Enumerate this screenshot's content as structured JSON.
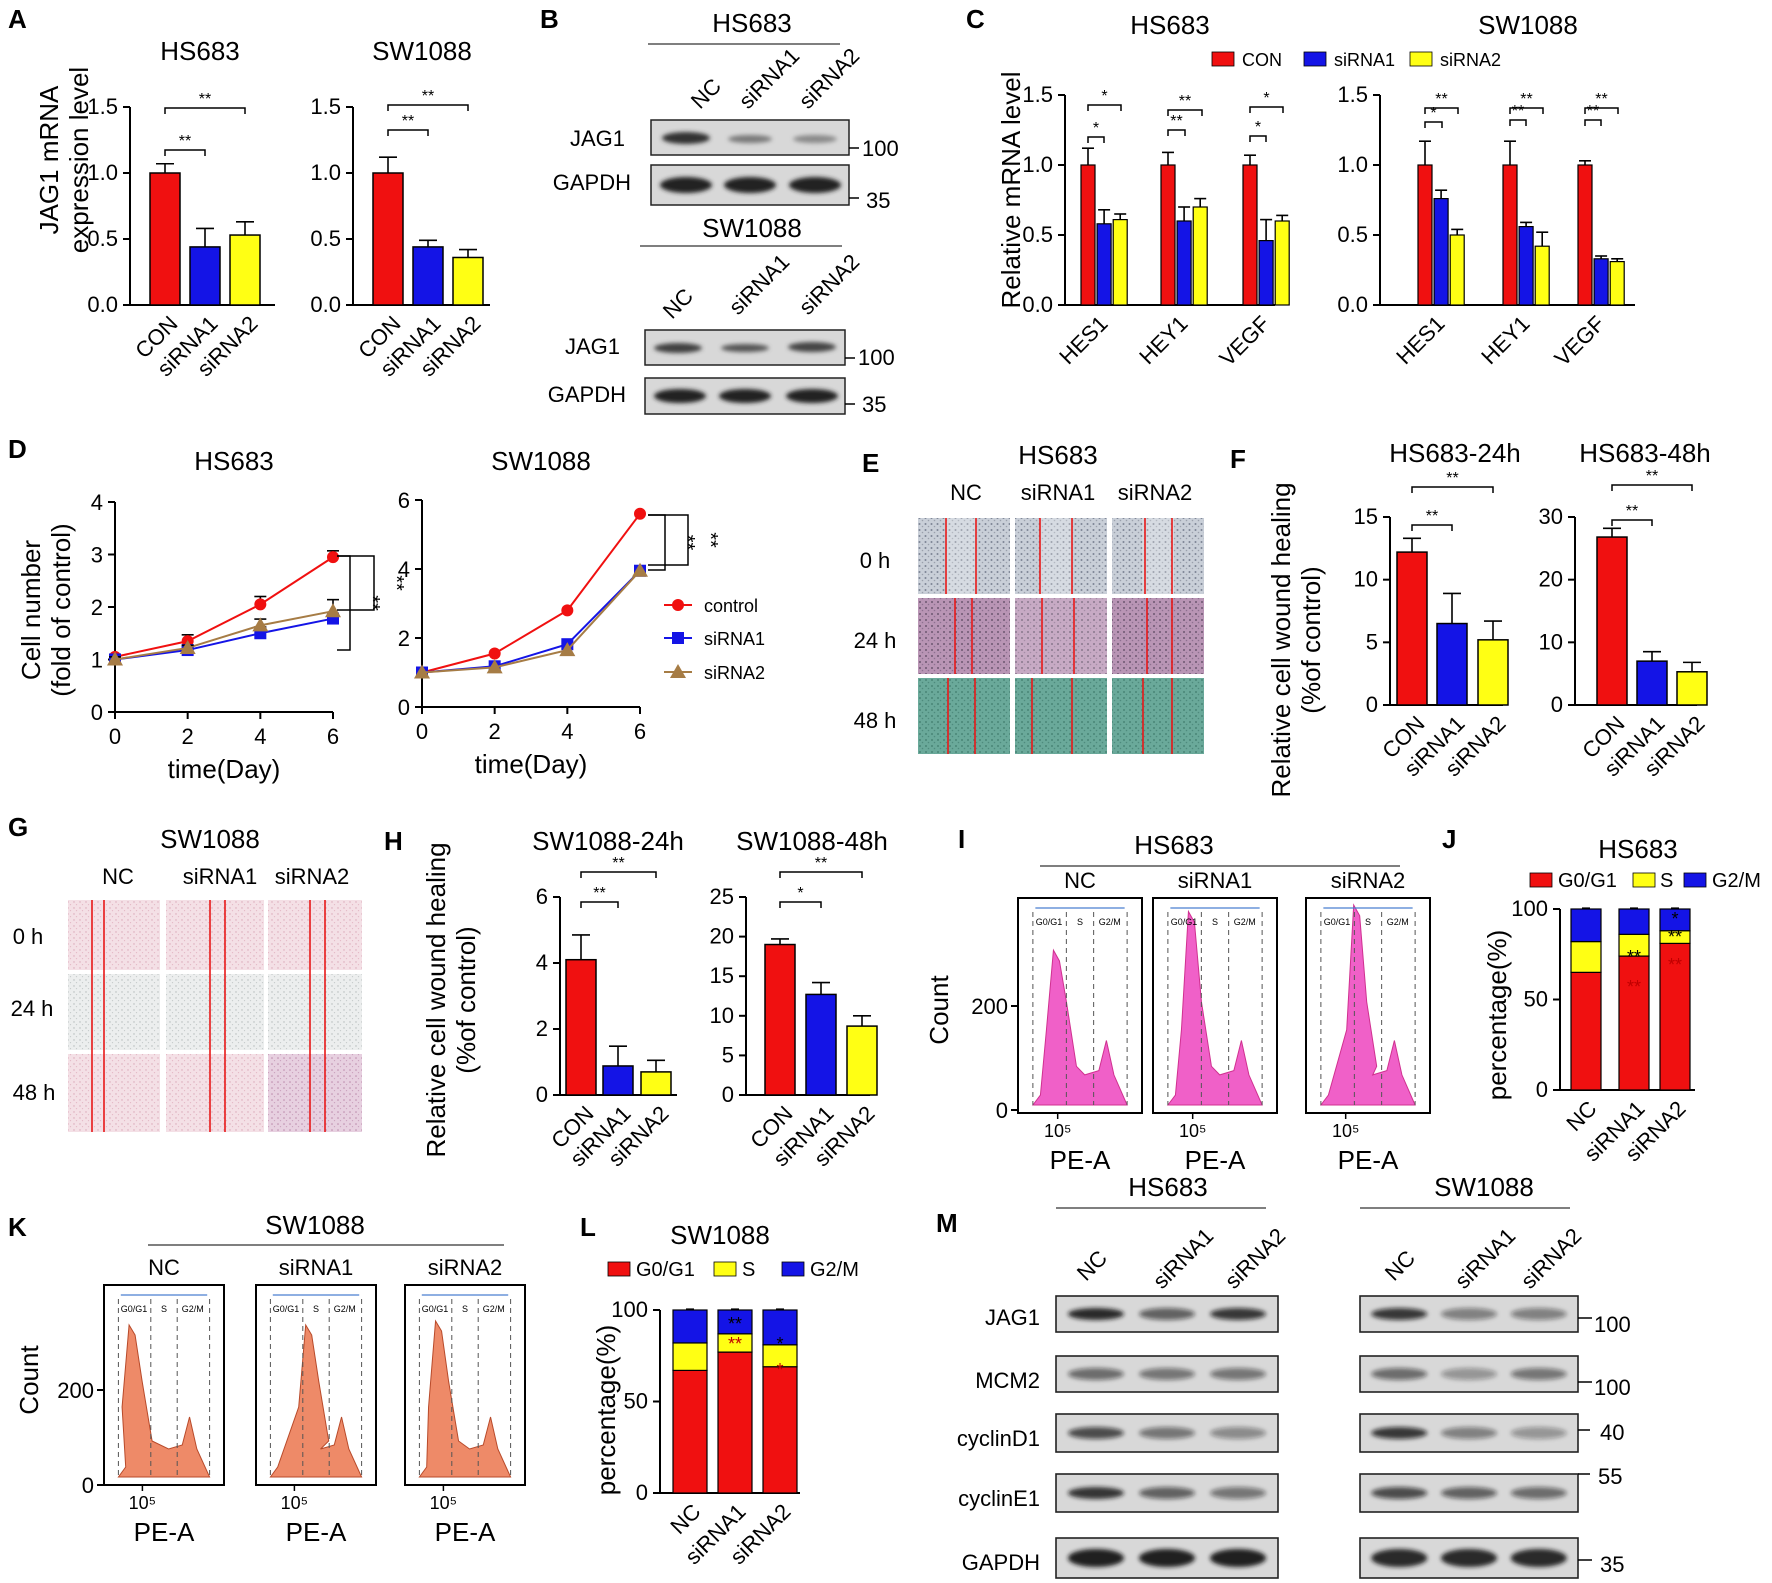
{
  "panels": {
    "A": "A",
    "B": "B",
    "C": "C",
    "D": "D",
    "E": "E",
    "F": "F",
    "G": "G",
    "H": "H",
    "I": "I",
    "J": "J",
    "K": "K",
    "L": "L",
    "M": "M"
  },
  "labels": {
    "con": "CON",
    "sirna1": "siRNA1",
    "sirna2": "siRNA2",
    "nc": "NC",
    "hs683": "HS683",
    "sw1088": "SW1088",
    "jag1": "JAG1",
    "gapdh": "GAPDH",
    "mcm2": "MCM2",
    "cyclind1": "cyclinD1",
    "cyclinE1": "cyclinE1",
    "mw100": "100",
    "mw35": "35",
    "mw40": "40",
    "mw55": "55",
    "star2": "**",
    "star1": "*",
    "count": "Count",
    "pea": "PE-A",
    "tick105": "10⁵",
    "g0g1_short": "G0/G1",
    "s_short": "S",
    "g2m_short": "G2/M",
    "h0": "0  h",
    "h24": "24  h",
    "h48": "48  h",
    "control": "control",
    "ylab_a": [
      "JAG1 mRNA",
      "expression level"
    ],
    "ylab_c": "Relative mRNA level",
    "ylab_d": [
      "Cell number",
      "(fold of control)"
    ],
    "xlab_d": "time(Day)",
    "ylab_wound": [
      "Relative cell wound healing",
      "(%of control)"
    ],
    "ylab_pct": "percentage(%)"
  },
  "colors": {
    "red": "#f01010",
    "blue": "#1414e6",
    "yellow": "#ffff14",
    "brown": "#a67c45",
    "pink": "#f060c8",
    "salmon": "#ee8a68"
  },
  "chart_data": [
    {
      "id": "A1",
      "type": "bar",
      "title": "HS683",
      "categories": [
        "CON",
        "siRNA1",
        "siRNA2"
      ],
      "values": [
        1.0,
        0.44,
        0.53
      ],
      "errors": [
        0.07,
        0.14,
        0.1
      ],
      "ylim": [
        0,
        1.5
      ],
      "yticks": [
        "0.0",
        "0.5",
        "1.0",
        "1.5"
      ],
      "ylabel": "JAG1 mRNA expression level"
    },
    {
      "id": "A2",
      "type": "bar",
      "title": "SW1088",
      "categories": [
        "CON",
        "siRNA1",
        "siRNA2"
      ],
      "values": [
        1.0,
        0.44,
        0.36
      ],
      "errors": [
        0.12,
        0.05,
        0.06
      ],
      "ylim": [
        0,
        1.5
      ],
      "yticks": [
        "0.0",
        "0.5",
        "1.0",
        "1.5"
      ]
    },
    {
      "id": "C1",
      "type": "bar",
      "title": "HS683",
      "categories": [
        "HES1",
        "HEY1",
        "VEGF"
      ],
      "series": [
        {
          "name": "CON",
          "values": [
            1.0,
            1.0,
            1.0
          ],
          "errors": [
            0.12,
            0.09,
            0.07
          ]
        },
        {
          "name": "siRNA1",
          "values": [
            0.58,
            0.6,
            0.46
          ],
          "errors": [
            0.1,
            0.1,
            0.15
          ]
        },
        {
          "name": "siRNA2",
          "values": [
            0.61,
            0.7,
            0.6
          ],
          "errors": [
            0.04,
            0.06,
            0.04
          ]
        }
      ],
      "ylim": [
        0,
        1.5
      ],
      "yticks": [
        "0.0",
        "0.5",
        "1.0",
        "1.5"
      ],
      "ylabel": "Relative mRNA level"
    },
    {
      "id": "C2",
      "type": "bar",
      "title": "SW1088",
      "categories": [
        "HES1",
        "HEY1",
        "VEGF"
      ],
      "series": [
        {
          "name": "CON",
          "values": [
            1.0,
            1.0,
            1.0
          ],
          "errors": [
            0.17,
            0.17,
            0.03
          ]
        },
        {
          "name": "siRNA1",
          "values": [
            0.76,
            0.56,
            0.33
          ],
          "errors": [
            0.06,
            0.03,
            0.02
          ]
        },
        {
          "name": "siRNA2",
          "values": [
            0.5,
            0.42,
            0.31
          ],
          "errors": [
            0.04,
            0.1,
            0.02
          ]
        }
      ],
      "ylim": [
        0,
        1.5
      ],
      "yticks": [
        "0.0",
        "0.5",
        "1.0",
        "1.5"
      ]
    },
    {
      "id": "D1",
      "type": "line",
      "title": "HS683",
      "x": [
        0,
        2,
        4,
        6
      ],
      "series": [
        {
          "name": "control",
          "values": [
            1.05,
            1.35,
            2.05,
            2.95
          ],
          "errors": [
            0.05,
            0.12,
            0.15,
            0.12
          ]
        },
        {
          "name": "siRNA1",
          "values": [
            1.0,
            1.18,
            1.5,
            1.78
          ],
          "errors": [
            0.05,
            0.06,
            0.12,
            0.1
          ]
        },
        {
          "name": "siRNA2",
          "values": [
            1.0,
            1.22,
            1.65,
            1.92
          ],
          "errors": [
            0.05,
            0.05,
            0.12,
            0.22
          ]
        }
      ],
      "ylim": [
        0,
        4
      ],
      "yticks": [
        "0",
        "1",
        "2",
        "3",
        "4"
      ],
      "xticks": [
        "0",
        "2",
        "4",
        "6"
      ],
      "xlabel": "time(Day)",
      "ylabel": "Cell number (fold of control)"
    },
    {
      "id": "D2",
      "type": "line",
      "title": "SW1088",
      "x": [
        0,
        2,
        4,
        6
      ],
      "series": [
        {
          "name": "control",
          "values": [
            1.0,
            1.55,
            2.8,
            5.6
          ]
        },
        {
          "name": "siRNA1",
          "values": [
            1.0,
            1.18,
            1.82,
            3.95
          ]
        },
        {
          "name": "siRNA2",
          "values": [
            1.0,
            1.15,
            1.65,
            3.95
          ]
        }
      ],
      "ylim": [
        0,
        6
      ],
      "yticks": [
        "0",
        "2",
        "4",
        "6"
      ],
      "xticks": [
        "0",
        "2",
        "4",
        "6"
      ],
      "xlabel": "time(Day)"
    },
    {
      "id": "F1",
      "type": "bar",
      "title": "HS683-24h",
      "categories": [
        "CON",
        "siRNA1",
        "siRNA2"
      ],
      "values": [
        12.2,
        6.5,
        5.2
      ],
      "errors": [
        1.1,
        2.4,
        1.5
      ],
      "ylim": [
        0,
        15
      ],
      "yticks": [
        "0",
        "5",
        "10",
        "15"
      ],
      "ylabel": "Relative cell wound healing (%of control)"
    },
    {
      "id": "F2",
      "type": "bar",
      "title": "HS683-48h",
      "categories": [
        "CON",
        "siRNA1",
        "siRNA2"
      ],
      "values": [
        26.8,
        7.0,
        5.3
      ],
      "errors": [
        1.4,
        1.5,
        1.5
      ],
      "ylim": [
        0,
        30
      ],
      "yticks": [
        "0",
        "10",
        "20",
        "30"
      ]
    },
    {
      "id": "H1",
      "type": "bar",
      "title": "SW1088-24h",
      "categories": [
        "CON",
        "siRNA1",
        "siRNA2"
      ],
      "values": [
        4.1,
        0.88,
        0.7
      ],
      "errors": [
        0.75,
        0.6,
        0.35
      ],
      "ylim": [
        0,
        6
      ],
      "yticks": [
        "0",
        "2",
        "4",
        "6"
      ],
      "ylabel": "Relative cell wound healing (%of control)"
    },
    {
      "id": "H2",
      "type": "bar",
      "title": "SW1088-48h",
      "categories": [
        "CON",
        "siRNA1",
        "siRNA2"
      ],
      "values": [
        19.0,
        12.7,
        8.7
      ],
      "errors": [
        0.7,
        1.5,
        1.3
      ],
      "ylim": [
        0,
        25
      ],
      "yticks": [
        "0",
        "5",
        "10",
        "15",
        "20",
        "25"
      ]
    },
    {
      "id": "J",
      "type": "bar",
      "stacked": true,
      "title": "HS683",
      "categories": [
        "NC",
        "siRNA1",
        "siRNA2"
      ],
      "series": [
        {
          "name": "G0/G1",
          "values": [
            65,
            74,
            81
          ]
        },
        {
          "name": "S",
          "values": [
            17,
            12,
            7
          ]
        },
        {
          "name": "G2/M",
          "values": [
            18,
            14,
            12
          ]
        }
      ],
      "ylim": [
        0,
        100
      ],
      "yticks": [
        "0",
        "50",
        "100"
      ],
      "ylabel": "percentage(%)"
    },
    {
      "id": "L",
      "type": "bar",
      "stacked": true,
      "title": "SW1088",
      "categories": [
        "NC",
        "siRNA1",
        "siRNA2"
      ],
      "series": [
        {
          "name": "G0/G1",
          "values": [
            67,
            77,
            69
          ]
        },
        {
          "name": "S",
          "values": [
            15,
            10,
            12
          ]
        },
        {
          "name": "G2/M",
          "values": [
            18,
            13,
            19
          ]
        }
      ],
      "ylim": [
        0,
        100
      ],
      "yticks": [
        "0",
        "50",
        "100"
      ],
      "ylabel": "percentage(%)"
    },
    {
      "id": "I",
      "type": "histogram",
      "title": "HS683",
      "categories": [
        "NC",
        "siRNA1",
        "siRNA2"
      ],
      "yticks": [
        "0",
        "200"
      ],
      "xlabel": "PE-A",
      "ylabel": "Count"
    },
    {
      "id": "K",
      "type": "histogram",
      "title": "SW1088",
      "categories": [
        "NC",
        "siRNA1",
        "siRNA2"
      ],
      "yticks": [
        "0",
        "200"
      ],
      "xlabel": "PE-A",
      "ylabel": "Count"
    }
  ]
}
